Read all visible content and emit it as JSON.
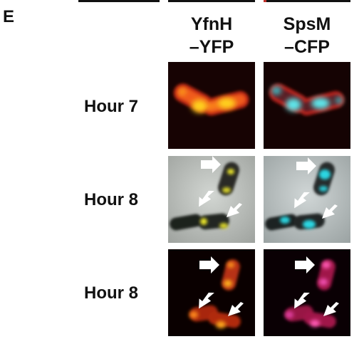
{
  "panel": {
    "letter": "E"
  },
  "columns": [
    {
      "line1": "YfnH",
      "line2": "–YFP"
    },
    {
      "line1": "SpsM",
      "line2": "–CFP"
    }
  ],
  "rows": [
    {
      "label": "Hour 7"
    },
    {
      "label": "Hour 8"
    },
    {
      "label": "Hour 8"
    }
  ],
  "colors": {
    "membrane_red": "#e8341c",
    "yfp_yellow": "#ffd11a",
    "cfp_cyan": "#5ee6ea",
    "spore_magenta": "#e0308a",
    "phase_background": "#b8bcb8",
    "arrow_white": "#ffffff"
  }
}
